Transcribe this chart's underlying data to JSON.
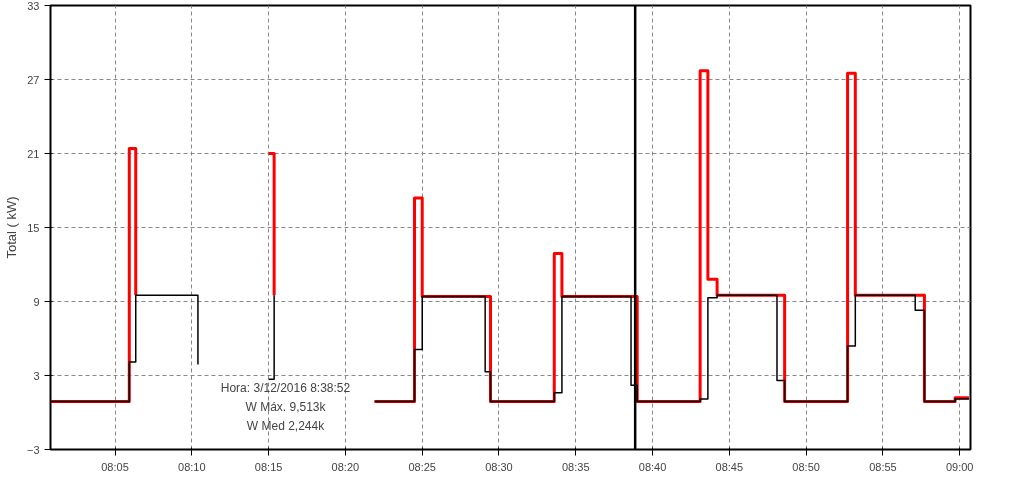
{
  "chart_data": {
    "type": "step",
    "ylabel": "Total ( kW)",
    "xlim": [
      8.0133,
      9.0117
    ],
    "ylim": [
      -3,
      33
    ],
    "yticks": [
      -3,
      3,
      9,
      15,
      21,
      27,
      33
    ],
    "xticks": [
      {
        "value": 8.0833,
        "label": "08:05"
      },
      {
        "value": 8.1667,
        "label": "08:10"
      },
      {
        "value": 8.25,
        "label": "08:15"
      },
      {
        "value": 8.3333,
        "label": "08:20"
      },
      {
        "value": 8.4167,
        "label": "08:25"
      },
      {
        "value": 8.5,
        "label": "08:30"
      },
      {
        "value": 8.5833,
        "label": "08:35"
      },
      {
        "value": 8.6667,
        "label": "08:40"
      },
      {
        "value": 8.75,
        "label": "08:45"
      },
      {
        "value": 8.8333,
        "label": "08:50"
      },
      {
        "value": 8.9167,
        "label": "08:55"
      },
      {
        "value": 9.0,
        "label": "09:00"
      }
    ],
    "grid": true,
    "marker": "none",
    "line_style": "solid",
    "series": [
      {
        "color": "#ff0000",
        "x": [
          8.0133,
          8.0988,
          8.1058,
          8.1817,
          8.25,
          8.256,
          8.3333,
          8.365,
          8.4083,
          8.4167,
          8.4908,
          8.56,
          8.5683,
          8.65,
          8.7183,
          8.7267,
          8.7367,
          8.81,
          8.8783,
          8.8867,
          8.9617,
          8.995,
          9.01
        ],
        "values": [
          0.9,
          21.4,
          9.5,
          null,
          21.0,
          9.5,
          null,
          0.9,
          17.4,
          9.4,
          0.9,
          12.9,
          9.4,
          0.9,
          27.7,
          10.8,
          9.5,
          0.9,
          27.5,
          9.5,
          0.9,
          1.2,
          1.2
        ]
      },
      {
        "color": "#000000",
        "x": [
          8.0133,
          8.0988,
          8.1058,
          8.1733,
          8.1817,
          8.25,
          8.256,
          8.3333,
          8.365,
          8.4083,
          8.4167,
          8.485,
          8.4908,
          8.56,
          8.5683,
          8.6433,
          8.65,
          8.7183,
          8.7267,
          8.7367,
          8.8017,
          8.81,
          8.8783,
          8.8867,
          8.9517,
          8.9617,
          8.995,
          9.01
        ],
        "values": [
          0.9,
          4.1,
          9.5,
          3.9,
          null,
          2.7,
          9.5,
          null,
          0.9,
          5.1,
          9.4,
          3.3,
          0.9,
          1.6,
          9.4,
          2.2,
          0.9,
          1.1,
          9.3,
          9.5,
          2.6,
          0.9,
          5.4,
          9.5,
          8.3,
          0.9,
          1.1,
          1.1
        ]
      }
    ],
    "ref_lines": [
      {
        "axis": "x",
        "value": 8.6478,
        "color": "#000000"
      }
    ],
    "annotations": [
      "Hora: 3/12/2016 8:38:52",
      "W Máx. 9,513k",
      "W Med 2,244k"
    ]
  }
}
